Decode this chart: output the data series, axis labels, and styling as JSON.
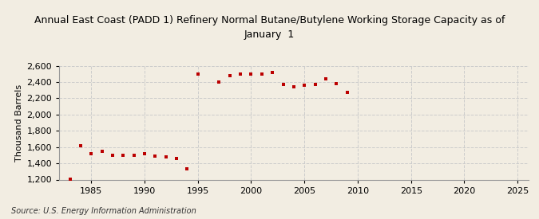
{
  "title": "Annual East Coast (PADD 1) Refinery Normal Butane/Butylene Working Storage Capacity as of\nJanuary  1",
  "ylabel": "Thousand Barrels",
  "source": "Source: U.S. Energy Information Administration",
  "background_color": "#f2ede2",
  "plot_background_color": "#f2ede2",
  "marker_color": "#bb0000",
  "years": [
    1983,
    1984,
    1985,
    1986,
    1987,
    1988,
    1989,
    1990,
    1991,
    1992,
    1993,
    1994,
    1995,
    1997,
    1998,
    1999,
    2000,
    2001,
    2002,
    2003,
    2004,
    2005,
    2006,
    2007,
    2008,
    2009
  ],
  "values": [
    1204,
    1613,
    1522,
    1549,
    1497,
    1496,
    1497,
    1519,
    1488,
    1476,
    1460,
    1332,
    2501,
    2401,
    2481,
    2499,
    2497,
    2499,
    2521,
    2371,
    2343,
    2361,
    2373,
    2441,
    2382,
    2268
  ],
  "xlim": [
    1982,
    2026
  ],
  "ylim": [
    1200,
    2600
  ],
  "yticks": [
    1200,
    1400,
    1600,
    1800,
    2000,
    2200,
    2400,
    2600
  ],
  "xticks": [
    1985,
    1990,
    1995,
    2000,
    2005,
    2010,
    2015,
    2020,
    2025
  ],
  "grid_color": "#cccccc",
  "title_fontsize": 9,
  "axis_fontsize": 8,
  "tick_fontsize": 8,
  "source_fontsize": 7
}
